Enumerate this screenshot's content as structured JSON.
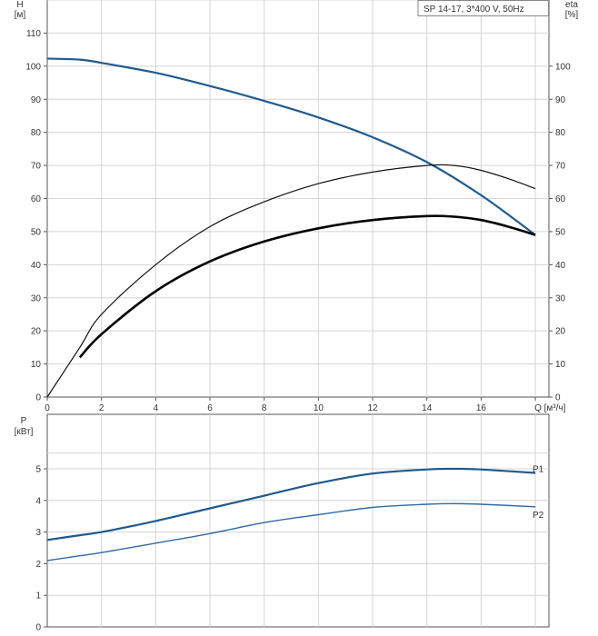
{
  "legend": "SP 14-17, 3*400 V, 50Hz",
  "chart_data": [
    {
      "type": "line",
      "title": "",
      "xlabel": "Q [м³/ч]",
      "ylabel_left": "H\n[м]",
      "ylabel_right": "eta\n[%]",
      "xlim": [
        0,
        18.5
      ],
      "ylim_left": [
        0,
        120
      ],
      "ylim_right": [
        0,
        120
      ],
      "x_ticks": [
        0,
        2,
        4,
        6,
        8,
        10,
        12,
        14,
        16,
        18
      ],
      "x_tick_labels": [
        "0",
        "2",
        "4",
        "6",
        "8",
        "10",
        "12",
        "14",
        "16"
      ],
      "y_ticks_left": [
        0,
        10,
        20,
        30,
        40,
        50,
        60,
        70,
        80,
        90,
        100,
        110
      ],
      "y_ticks_right": [
        0,
        10,
        20,
        30,
        40,
        50,
        60,
        70,
        80,
        90,
        100
      ],
      "grid": true,
      "series": [
        {
          "name": "",
          "color": "#1f5a8f",
          "x": [
            0,
            1.2,
            2,
            4,
            6,
            8,
            10,
            12,
            14,
            16,
            18
          ],
          "y": [
            102.3,
            102,
            101,
            98,
            94,
            89.5,
            84.5,
            78.5,
            71,
            61,
            49
          ]
        },
        {
          "name": "",
          "color": "#111111",
          "x": [
            0,
            1.2,
            2,
            4,
            6,
            8,
            10,
            12,
            14,
            15,
            16,
            17,
            18
          ],
          "y": [
            0,
            15,
            25,
            40,
            51.5,
            59,
            64.5,
            68,
            70,
            70,
            68.5,
            66,
            63
          ]
        },
        {
          "name": "",
          "color": "#000000",
          "x": [
            1.2,
            2,
            4,
            6,
            8,
            10,
            12,
            14,
            15,
            16,
            17,
            18
          ],
          "y": [
            12,
            19,
            32,
            41,
            47,
            51,
            53.5,
            54.7,
            54.5,
            53.5,
            51.5,
            49
          ]
        }
      ]
    },
    {
      "type": "line",
      "title": "",
      "xlabel": "",
      "ylabel": "P\n[кВт]",
      "xlim": [
        0,
        18.5
      ],
      "ylim": [
        0,
        6
      ],
      "x_ticks": [
        0,
        2,
        4,
        6,
        8,
        10,
        12,
        14,
        16,
        18
      ],
      "y_ticks": [
        0,
        1,
        2,
        3,
        4,
        5
      ],
      "grid": true,
      "series": [
        {
          "name": "P1",
          "color": "#1f5a8f",
          "x": [
            0,
            1.2,
            2,
            4,
            6,
            8,
            10,
            12,
            14,
            15,
            16,
            18
          ],
          "y": [
            2.75,
            2.9,
            3.0,
            3.35,
            3.75,
            4.15,
            4.55,
            4.85,
            4.98,
            5.0,
            4.98,
            4.87
          ]
        },
        {
          "name": "P2",
          "color": "#2f6aa8",
          "x": [
            0,
            1.2,
            2,
            4,
            6,
            8,
            10,
            12,
            14,
            15,
            16,
            18
          ],
          "y": [
            2.1,
            2.25,
            2.35,
            2.65,
            2.95,
            3.3,
            3.55,
            3.78,
            3.88,
            3.9,
            3.88,
            3.8
          ]
        }
      ]
    }
  ]
}
